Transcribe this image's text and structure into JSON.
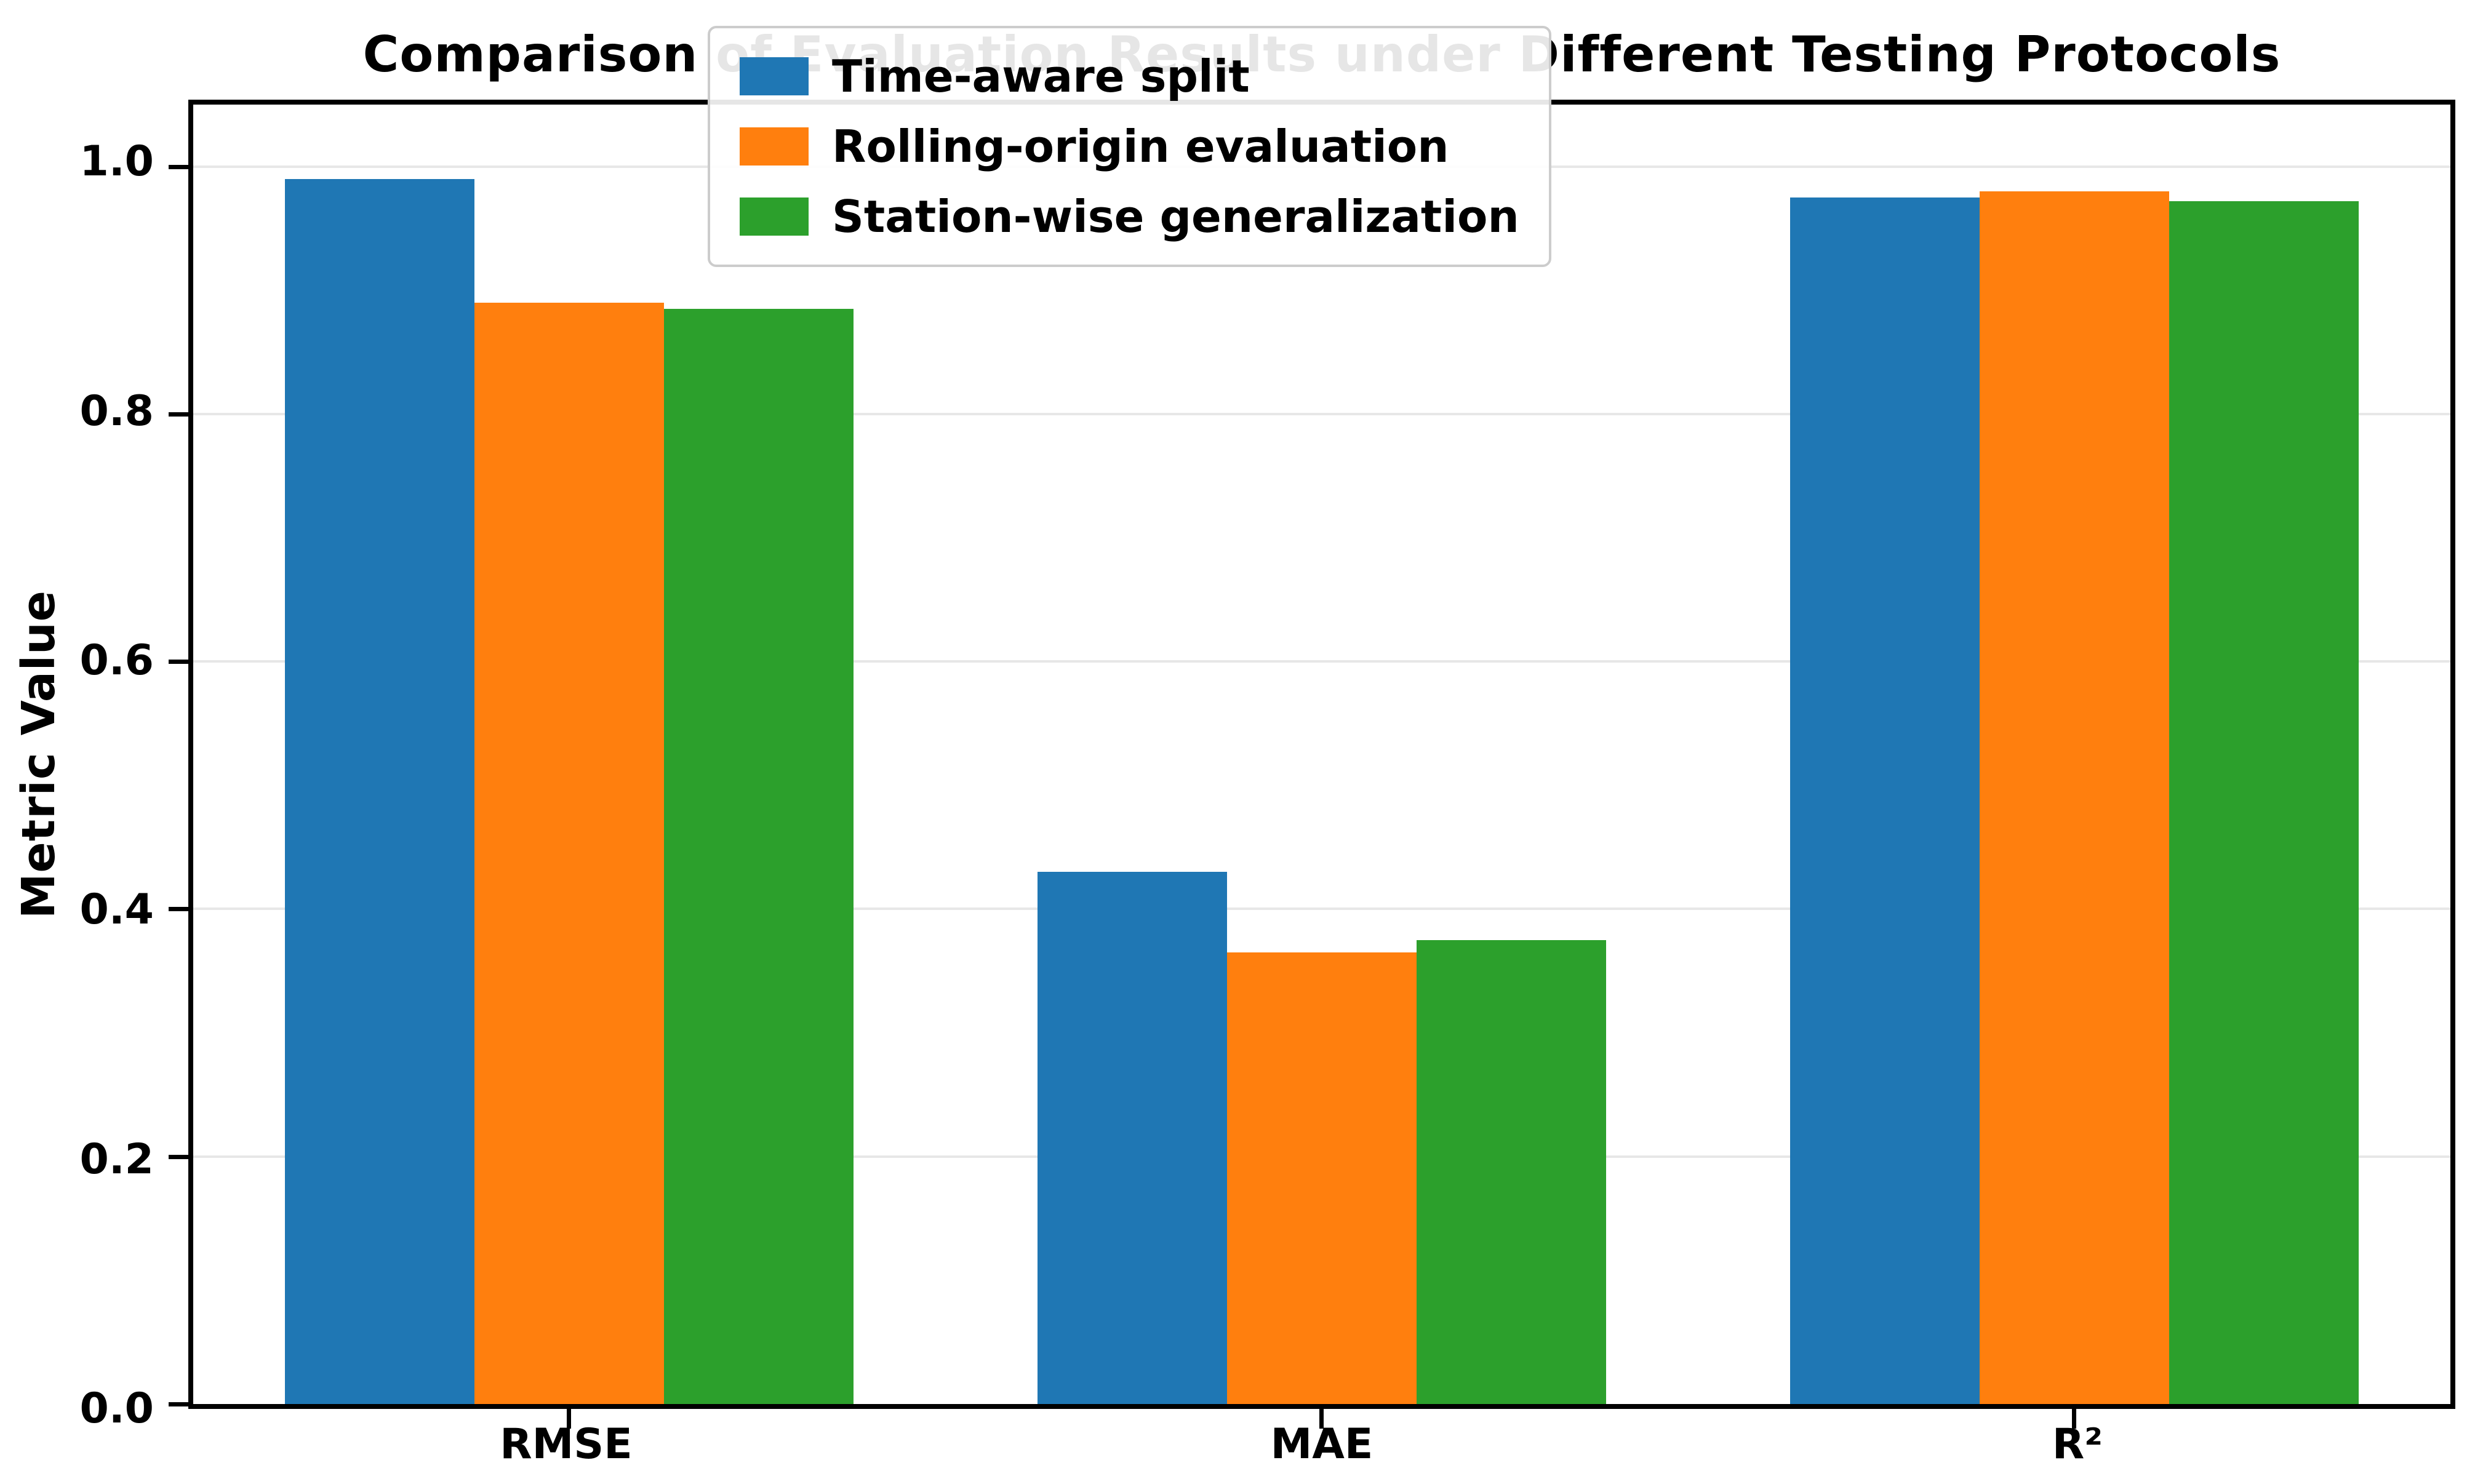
{
  "chart_data": {
    "type": "bar",
    "title": "Comparison of Evaluation Results under Different Testing Protocols",
    "xlabel": "",
    "ylabel": "Metric Value",
    "categories": [
      "RMSE",
      "MAE",
      "R²"
    ],
    "series": [
      {
        "name": "Time-aware split",
        "color": "#1f77b4",
        "values": [
          0.99,
          0.43,
          0.975
        ]
      },
      {
        "name": "Rolling-origin evaluation",
        "color": "#ff7f0e",
        "values": [
          0.89,
          0.365,
          0.98
        ]
      },
      {
        "name": "Station-wise generalization",
        "color": "#2ca02c",
        "values": [
          0.885,
          0.375,
          0.972
        ]
      }
    ],
    "ylim": [
      0,
      1.05
    ],
    "yticks": [
      0.0,
      0.2,
      0.4,
      0.6,
      0.8,
      1.0
    ],
    "grid": true,
    "legend_position": "upper center",
    "colors": {
      "axis": "#000000",
      "gridline": "#e7e7e7",
      "legend_border": "#cccccc"
    }
  }
}
